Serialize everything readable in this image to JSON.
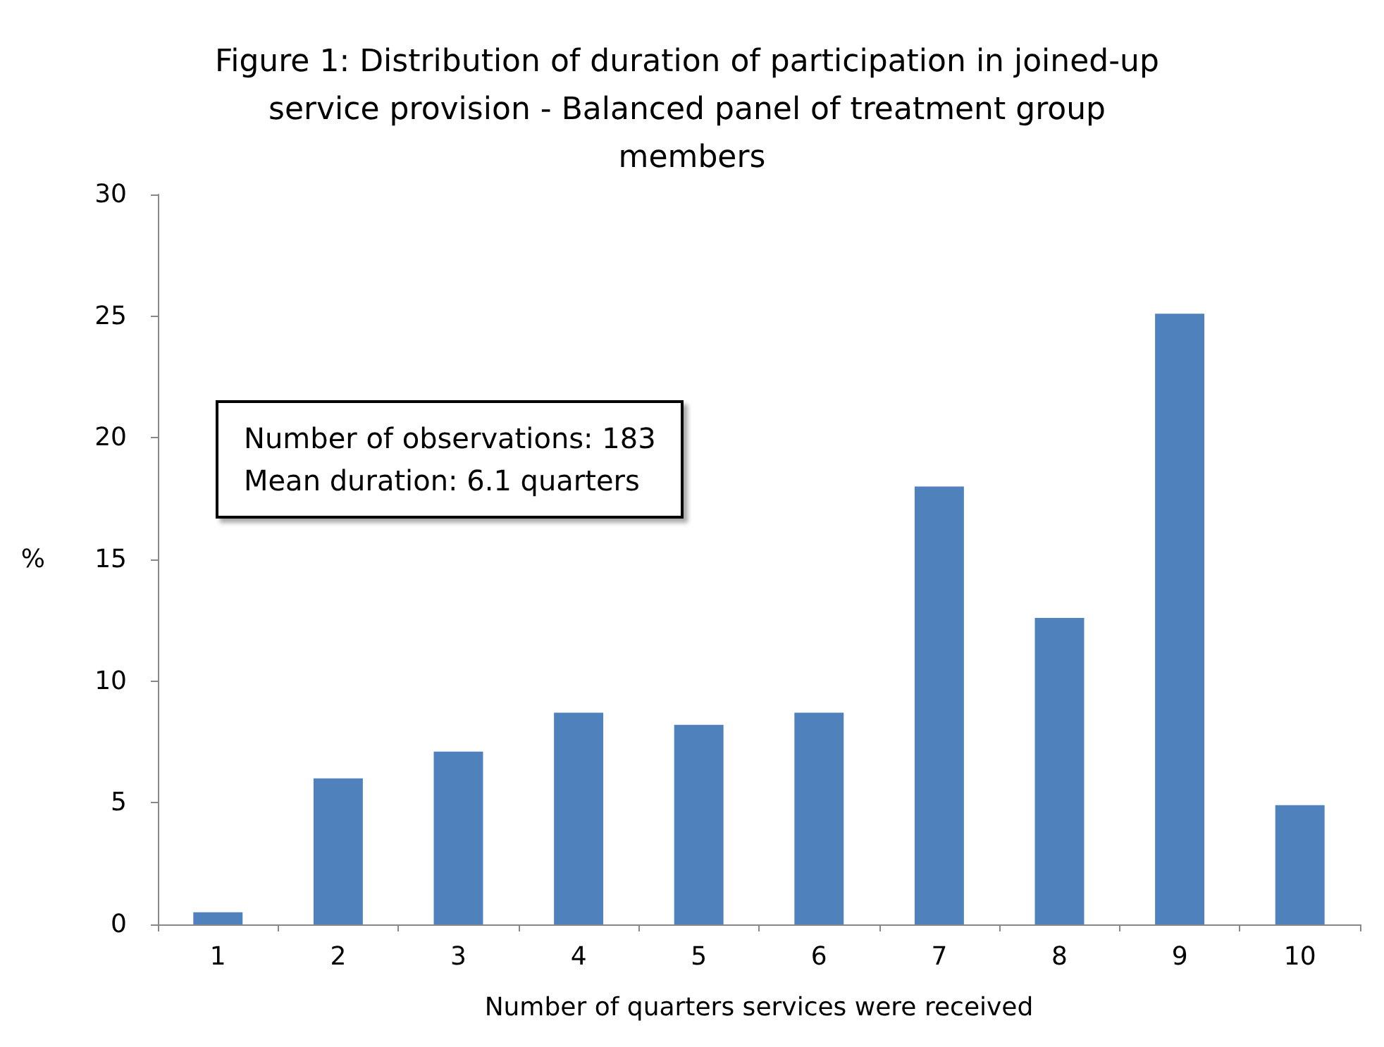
{
  "chart_data": {
    "type": "bar",
    "title": "Figure 1: Distribution of duration of participation in joined-up service provision - Balanced panel of treatment group members",
    "xlabel": "Number of quarters services were received",
    "ylabel": "%",
    "categories": [
      "1",
      "2",
      "3",
      "4",
      "5",
      "6",
      "7",
      "8",
      "9",
      "10"
    ],
    "values": [
      0.5,
      6.0,
      7.1,
      8.7,
      8.2,
      8.7,
      18.0,
      12.6,
      25.1,
      4.9
    ],
    "color": "#4f81bd",
    "ylim": [
      0,
      30
    ],
    "yticks": [
      0,
      5,
      10,
      15,
      20,
      25,
      30
    ],
    "annotations": [
      "Number of observations: 183",
      "Mean duration: 6.1 quarters"
    ]
  }
}
